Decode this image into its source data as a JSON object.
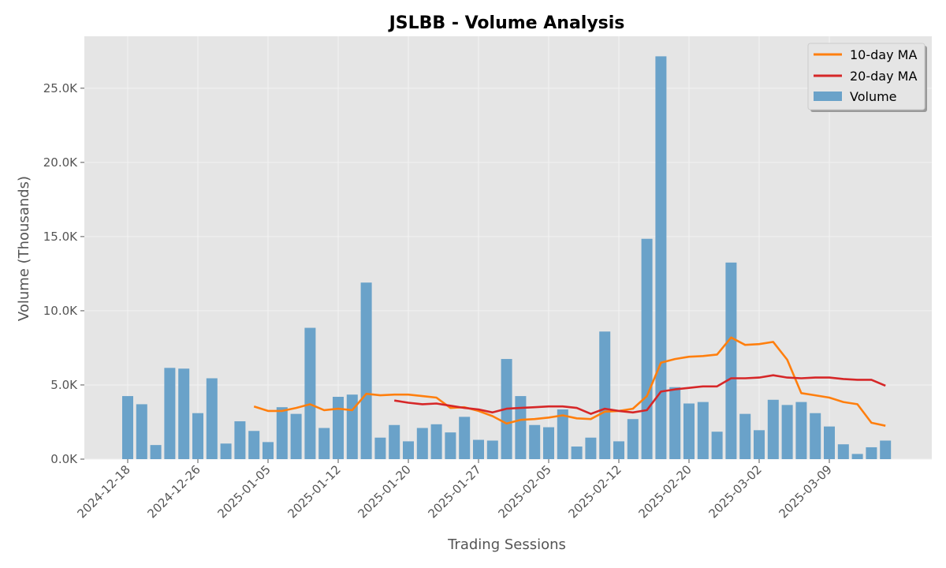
{
  "chart_data": {
    "type": "bar",
    "title": "JSLBB - Volume Analysis",
    "xlabel": "Trading Sessions",
    "ylabel": "Volume (Thousands)",
    "ylim": [
      0,
      28500
    ],
    "yticks": [
      0,
      5000,
      10000,
      15000,
      20000,
      25000
    ],
    "ytick_labels": [
      "0.0K",
      "5.0K",
      "10.0K",
      "15.0K",
      "20.0K",
      "25.0K"
    ],
    "xtick_labels": [
      "2024-12-18",
      "2024-12-26",
      "2025-01-05",
      "2025-01-12",
      "2025-01-20",
      "2025-01-27",
      "2025-02-05",
      "2025-02-12",
      "2025-02-20",
      "2025-03-02",
      "2025-03-09"
    ],
    "xtick_index": [
      0,
      5,
      10,
      15,
      20,
      25,
      30,
      35,
      40,
      45,
      50
    ],
    "grid": true,
    "legend_position": "top-right",
    "colors": {
      "background": "#e5e5e5",
      "bar": "#6aa2c9",
      "ma10": "#ff7f0e",
      "ma20": "#d62728"
    },
    "legend": [
      "10-day MA",
      "20-day MA",
      "Volume"
    ],
    "series": [
      {
        "name": "Volume",
        "type": "bar",
        "values": [
          4250,
          3700,
          950,
          6150,
          6100,
          3100,
          5450,
          1050,
          2550,
          1900,
          1150,
          3500,
          3050,
          8850,
          2100,
          4200,
          4350,
          11900,
          1450,
          2300,
          1200,
          2100,
          2350,
          1800,
          2850,
          1300,
          1250,
          6750,
          4250,
          2300,
          2150,
          3350,
          850,
          1450,
          8600,
          1200,
          2700,
          14850,
          27150,
          4850,
          3750,
          3850,
          1850,
          13250,
          3050,
          1950,
          4000,
          3650,
          3850,
          3100,
          2200,
          1000,
          350,
          800,
          1250
        ]
      },
      {
        "name": "10-day MA",
        "type": "line",
        "values": [
          null,
          null,
          null,
          null,
          null,
          null,
          null,
          null,
          null,
          3550,
          3250,
          3250,
          3450,
          3700,
          3300,
          3400,
          3300,
          4400,
          4300,
          4350,
          4350,
          4250,
          4150,
          3450,
          3500,
          3250,
          2900,
          2400,
          2650,
          2700,
          2800,
          2950,
          2750,
          2700,
          3200,
          3250,
          3400,
          4250,
          6500,
          6750,
          6900,
          6950,
          7050,
          8200,
          7700,
          7750,
          7900,
          6700,
          4450,
          4300,
          4150,
          3850,
          3700,
          2450,
          2250
        ]
      },
      {
        "name": "20-day MA",
        "type": "line",
        "values": [
          null,
          null,
          null,
          null,
          null,
          null,
          null,
          null,
          null,
          null,
          null,
          null,
          null,
          null,
          null,
          null,
          null,
          null,
          null,
          3950,
          3800,
          3700,
          3750,
          3600,
          3450,
          3350,
          3150,
          3400,
          3450,
          3500,
          3550,
          3550,
          3450,
          3050,
          3400,
          3250,
          3150,
          3300,
          4550,
          4700,
          4800,
          4900,
          4900,
          5450,
          5450,
          5500,
          5650,
          5500,
          5450,
          5500,
          5500,
          5400,
          5350,
          5350,
          4950
        ]
      }
    ]
  }
}
